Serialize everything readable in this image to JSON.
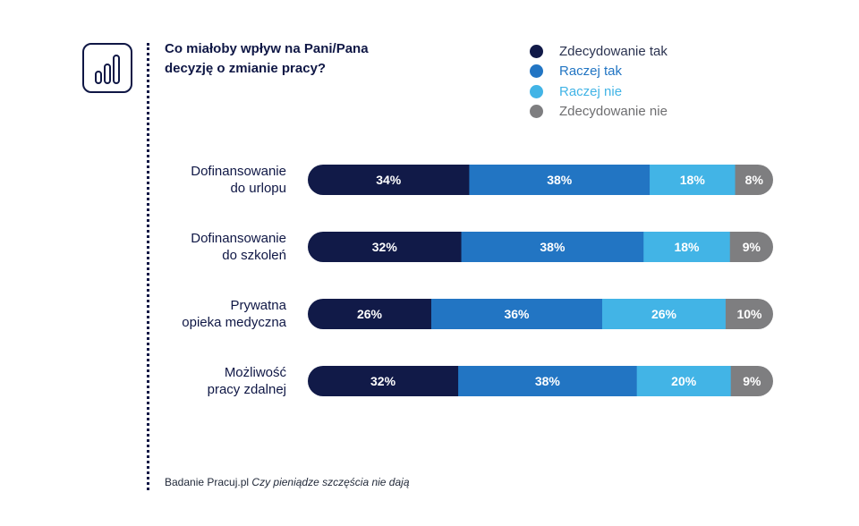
{
  "header": {
    "title_line1": "Co miałoby wpływ na Pani/Pana",
    "title_line2": "decyzję o zmianie pracy?",
    "icon": "bar-chart-icon"
  },
  "footer": {
    "source": "Badanie Pracuj.pl",
    "report": "Czy pieniądze szczęścia nie dają"
  },
  "chart_data": {
    "type": "bar",
    "orientation": "horizontal",
    "stacked": true,
    "title": "Co miałoby wpływ na Pani/Pana decyzję o zmianie pracy?",
    "categories": [
      [
        "Dofinansowanie",
        "do urlopu"
      ],
      [
        "Dofinansowanie",
        "do szkoleń"
      ],
      [
        "Prywatna",
        "opieka medyczna"
      ],
      [
        "Możliwość",
        "pracy zdalnej"
      ]
    ],
    "series": [
      {
        "name": "Zdecydowanie tak",
        "color": "#111a48",
        "values": [
          34,
          32,
          26,
          32
        ]
      },
      {
        "name": "Raczej tak",
        "color": "#2275c3",
        "values": [
          38,
          38,
          36,
          38
        ]
      },
      {
        "name": "Raczej nie",
        "color": "#42b4e6",
        "values": [
          18,
          18,
          26,
          20
        ]
      },
      {
        "name": "Zdecydowanie nie",
        "color": "#7e7e80",
        "values": [
          8,
          9,
          10,
          9
        ]
      }
    ],
    "value_suffix": "%",
    "legend_position": "top-right",
    "grid": false,
    "xlabel": "",
    "ylabel": ""
  }
}
